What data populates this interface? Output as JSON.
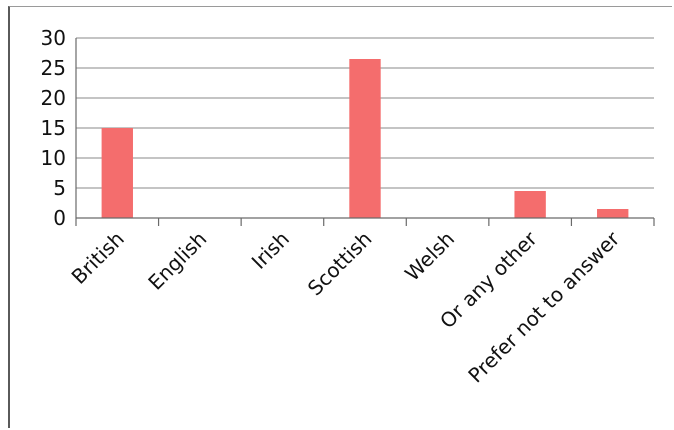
{
  "chart_data": {
    "type": "bar",
    "categories": [
      "British",
      "English",
      "Irish",
      "Scottish",
      "Welsh",
      "Or any other",
      "Prefer not to answer"
    ],
    "values": [
      15,
      0,
      0,
      26.5,
      0,
      4.5,
      1.5
    ],
    "title": "",
    "xlabel": "",
    "ylabel": "",
    "ylim": [
      0,
      30
    ],
    "yticks": [
      "0",
      "5",
      "10",
      "15",
      "20",
      "25",
      "30"
    ],
    "grid": true,
    "legend": "none",
    "bar_color": "#f46d6d"
  }
}
